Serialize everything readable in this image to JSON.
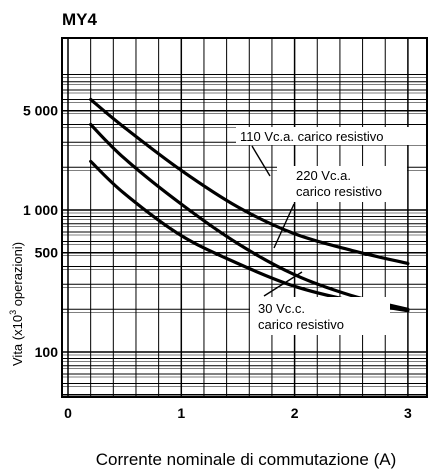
{
  "chart_data": {
    "type": "line",
    "title": "MY4",
    "xlabel": "Corrente nominale di commutazione (A)",
    "ylabel_main": "Vita (x10",
    "ylabel_sup": "3",
    "ylabel_tail": " operazioni)",
    "xlim": [
      0,
      3.2
    ],
    "ylim": [
      40,
      10000
    ],
    "yscale": "log",
    "grid": true,
    "x_ticks": [
      0,
      1,
      2,
      3
    ],
    "x_tick_labels": [
      "0",
      "1",
      "2",
      "3"
    ],
    "y_ticks": [
      100,
      500,
      1000,
      5000
    ],
    "y_tick_labels": [
      "100",
      "500",
      "1 000",
      "5 000"
    ],
    "series": [
      {
        "name": "110 Vc.a. carico resistivo",
        "label_lines": [
          "110 Vc.a. carico resistivo"
        ],
        "x": [
          0.2,
          0.5,
          1.0,
          1.5,
          2.0,
          2.5,
          3.0
        ],
        "y": [
          6000,
          3800,
          1900,
          1050,
          680,
          520,
          420
        ]
      },
      {
        "name": "220 Vc.a. carico resistivo",
        "label_lines": [
          "220 Vc.a.",
          "carico resistivo"
        ],
        "x": [
          0.2,
          0.5,
          1.0,
          1.5,
          2.0,
          2.5,
          3.0
        ],
        "y": [
          4000,
          2300,
          1100,
          580,
          350,
          250,
          200
        ]
      },
      {
        "name": "30 Vc.c. carico resistivo",
        "label_lines": [
          "30 Vc.c.",
          "carico resistivo"
        ],
        "x": [
          0.2,
          0.5,
          1.0,
          1.5,
          2.0,
          2.5,
          3.0
        ],
        "y": [
          2200,
          1300,
          660,
          420,
          290,
          230,
          195
        ]
      }
    ]
  }
}
